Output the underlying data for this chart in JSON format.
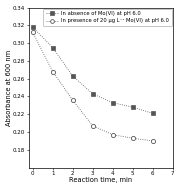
{
  "x": [
    0,
    1,
    2,
    3,
    4,
    5,
    6
  ],
  "y_absence": [
    0.318,
    0.295,
    0.263,
    0.243,
    0.233,
    0.228,
    0.221
  ],
  "y_presence": [
    0.312,
    0.268,
    0.236,
    0.207,
    0.197,
    0.193,
    0.19
  ],
  "xlim": [
    -0.2,
    7
  ],
  "ylim": [
    0.16,
    0.34
  ],
  "yticks": [
    0.18,
    0.2,
    0.22,
    0.24,
    0.26,
    0.28,
    0.3,
    0.32,
    0.34
  ],
  "xticks": [
    0,
    1,
    2,
    3,
    4,
    5,
    6,
    7
  ],
  "xlabel": "Reaction time, min",
  "ylabel": "Absorbance at 600 nm",
  "label_absence": "In absence of Mo(VI) at pH 6.0",
  "label_presence": "In presence of 20 μg L⁻¹ Mo(VI) at pH 6.0",
  "line_color": "#555555",
  "bg_color": "#ffffff",
  "legend_fontsize": 3.8,
  "axis_fontsize": 4.8,
  "tick_fontsize": 4.0
}
